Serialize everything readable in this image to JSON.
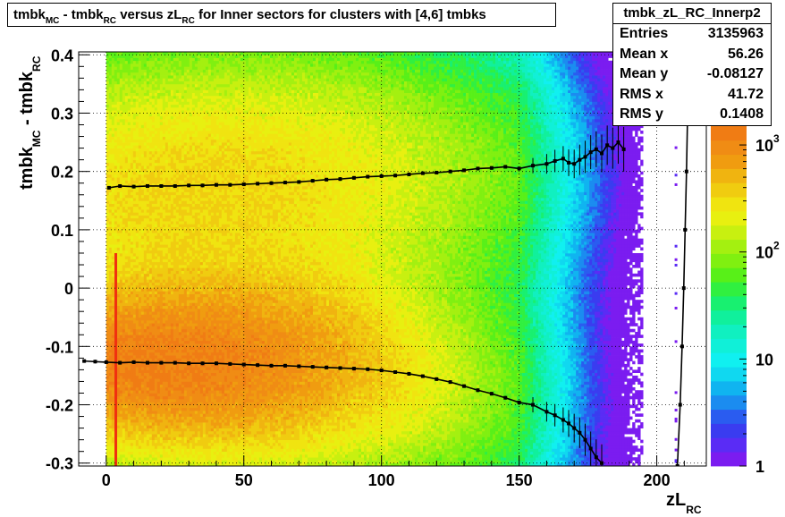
{
  "title": {
    "parts": [
      {
        "t": "tmbk"
      },
      {
        "sub": "MC"
      },
      {
        "t": " - tmbk"
      },
      {
        "sub": "RC"
      },
      {
        "t": " versus zL"
      },
      {
        "sub": "RC"
      },
      {
        "t": " for Inner sectors for clusters with [4,6] tmbks"
      }
    ]
  },
  "stats": {
    "name": "tmbk_zL_RC_Innerp2",
    "rows": [
      {
        "label": "Entries",
        "value": "3135963"
      },
      {
        "label": "Mean x",
        "value": "56.26"
      },
      {
        "label": "Mean y",
        "value": "-0.08127"
      },
      {
        "label": "RMS x",
        "value": "41.72"
      },
      {
        "label": "RMS y",
        "value": "0.1408"
      }
    ]
  },
  "chart_data": {
    "type": "heatmap",
    "xlabel": {
      "main": "zL",
      "sub": "RC"
    },
    "ylabel": {
      "main1": "tmbk",
      "sub1": "MC",
      "main2": " - tmbk",
      "sub2": "RC"
    },
    "xlim": [
      -10,
      218
    ],
    "ylim": [
      -0.305,
      0.405
    ],
    "x_ticks": [
      0,
      50,
      100,
      150,
      200
    ],
    "y_ticks": [
      -0.3,
      -0.2,
      -0.1,
      0,
      0.1,
      0.2,
      0.3,
      0.4
    ],
    "x_tick_labels": [
      "0",
      "50",
      "100",
      "150",
      "200"
    ],
    "y_tick_labels": [
      "-0.3",
      "-0.2",
      "-0.1",
      "0",
      "0.1",
      "0.2",
      "0.3",
      "0.4"
    ],
    "z_scale": "log",
    "zlim": [
      1,
      1500
    ],
    "z_tick_labels": [
      {
        "base": "1",
        "exp": ""
      },
      {
        "base": "10",
        "exp": ""
      },
      {
        "base": "10",
        "exp": "2"
      },
      {
        "base": "10",
        "exp": "3"
      }
    ],
    "grid": true,
    "palette": [
      "#7b1cf0",
      "#5a2cf5",
      "#3a3cf0",
      "#2a5cf0",
      "#1b8cf0",
      "#10b4f0",
      "#10d8f0",
      "#10f0f0",
      "#10f0d8",
      "#10f0c0",
      "#10f09c",
      "#18f070",
      "#30f040",
      "#58f018",
      "#80f010",
      "#a4f010",
      "#c8f010",
      "#e8f010",
      "#f0e410",
      "#f0cc10",
      "#f0b410",
      "#f09c10",
      "#f08c14",
      "#f07c14"
    ],
    "profile_upper": [
      [
        1,
        0.172
      ],
      [
        5,
        0.175
      ],
      [
        10,
        0.174
      ],
      [
        15,
        0.175
      ],
      [
        20,
        0.175
      ],
      [
        25,
        0.175
      ],
      [
        30,
        0.176
      ],
      [
        35,
        0.176
      ],
      [
        40,
        0.177
      ],
      [
        45,
        0.177
      ],
      [
        50,
        0.178
      ],
      [
        55,
        0.179
      ],
      [
        60,
        0.18
      ],
      [
        65,
        0.181
      ],
      [
        70,
        0.182
      ],
      [
        75,
        0.184
      ],
      [
        80,
        0.186
      ],
      [
        85,
        0.187
      ],
      [
        90,
        0.189
      ],
      [
        95,
        0.191
      ],
      [
        100,
        0.192
      ],
      [
        105,
        0.193
      ],
      [
        110,
        0.195
      ],
      [
        115,
        0.197
      ],
      [
        120,
        0.198
      ],
      [
        125,
        0.2
      ],
      [
        130,
        0.202
      ],
      [
        135,
        0.205
      ],
      [
        140,
        0.206
      ],
      [
        145,
        0.208
      ],
      [
        150,
        0.205
      ],
      [
        155,
        0.21
      ],
      [
        160,
        0.213
      ],
      [
        163,
        0.218
      ],
      [
        166,
        0.222
      ],
      [
        168,
        0.215
      ],
      [
        170,
        0.213
      ],
      [
        172,
        0.22
      ],
      [
        174,
        0.225
      ],
      [
        176,
        0.233
      ],
      [
        178,
        0.238
      ],
      [
        180,
        0.231
      ],
      [
        182,
        0.245
      ],
      [
        184,
        0.24
      ],
      [
        186,
        0.25
      ],
      [
        188,
        0.238
      ]
    ],
    "profile_lower": [
      [
        -8,
        -0.125
      ],
      [
        -4,
        -0.126
      ],
      [
        0,
        -0.127
      ],
      [
        5,
        -0.128
      ],
      [
        10,
        -0.127
      ],
      [
        15,
        -0.128
      ],
      [
        20,
        -0.128
      ],
      [
        25,
        -0.128
      ],
      [
        30,
        -0.129
      ],
      [
        35,
        -0.129
      ],
      [
        40,
        -0.129
      ],
      [
        45,
        -0.13
      ],
      [
        50,
        -0.131
      ],
      [
        55,
        -0.132
      ],
      [
        60,
        -0.133
      ],
      [
        65,
        -0.133
      ],
      [
        70,
        -0.134
      ],
      [
        75,
        -0.135
      ],
      [
        80,
        -0.136
      ],
      [
        85,
        -0.137
      ],
      [
        90,
        -0.138
      ],
      [
        95,
        -0.139
      ],
      [
        100,
        -0.141
      ],
      [
        105,
        -0.144
      ],
      [
        110,
        -0.147
      ],
      [
        115,
        -0.151
      ],
      [
        120,
        -0.156
      ],
      [
        125,
        -0.161
      ],
      [
        130,
        -0.168
      ],
      [
        135,
        -0.175
      ],
      [
        140,
        -0.181
      ],
      [
        145,
        -0.188
      ],
      [
        150,
        -0.196
      ],
      [
        155,
        -0.2
      ],
      [
        160,
        -0.212
      ],
      [
        163,
        -0.218
      ],
      [
        166,
        -0.226
      ],
      [
        168,
        -0.232
      ],
      [
        170,
        -0.24
      ],
      [
        172,
        -0.248
      ],
      [
        174,
        -0.26
      ],
      [
        176,
        -0.275
      ],
      [
        178,
        -0.29
      ],
      [
        180,
        -0.3
      ]
    ],
    "fit_upper_x": [
      1,
      190
    ],
    "fit_lower_x": [
      -10,
      182
    ],
    "vertical_curve": [
      [
        207.5,
        -0.305
      ],
      [
        208.5,
        -0.2
      ],
      [
        209.2,
        -0.1
      ],
      [
        209.8,
        0
      ],
      [
        210.3,
        0.1
      ],
      [
        210.8,
        0.2
      ],
      [
        211.2,
        0.3
      ],
      [
        211.5,
        0.405
      ]
    ]
  }
}
